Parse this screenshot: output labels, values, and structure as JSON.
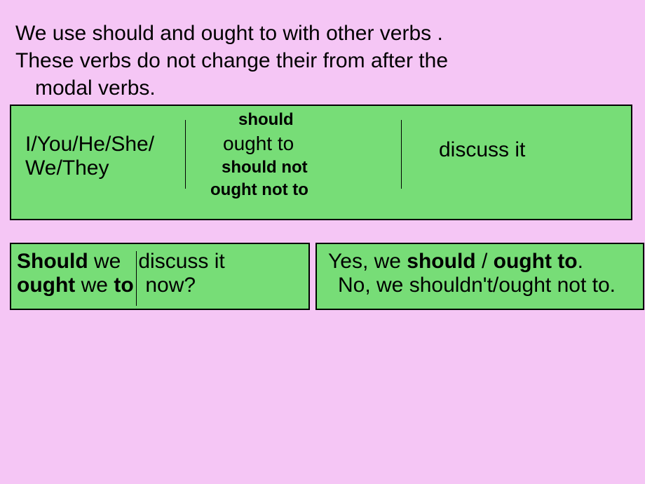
{
  "intro": {
    "line1": "We use should and ought to with other verbs .",
    "line2": "These verbs do not change their from after the",
    "line3": "modal verbs."
  },
  "box1": {
    "subject_line1": "I/You/He/She/",
    "subject_line2": "We/They",
    "modal1": "should",
    "modal2": "ought to",
    "modal3": "should not",
    "modal4": "ought not to",
    "verb": "discuss it"
  },
  "box2": {
    "q1_left_bold": "Should",
    "q1_left_rest": " we",
    "q1_right": "discuss it",
    "q2_left_bold1": "ought",
    "q2_left_mid": " we ",
    "q2_left_bold2": "to",
    "q2_right": "now?"
  },
  "box3": {
    "a1_pre": "Yes, we ",
    "a1_b1": "should",
    "a1_sep": " / ",
    "a1_b2": "ought to",
    "a1_end": ".",
    "a2": "No, we shouldn't/ought not to."
  },
  "colors": {
    "background": "#f5c6f5",
    "box_bg": "#77dd77",
    "border": "#000000",
    "text": "#000000"
  }
}
